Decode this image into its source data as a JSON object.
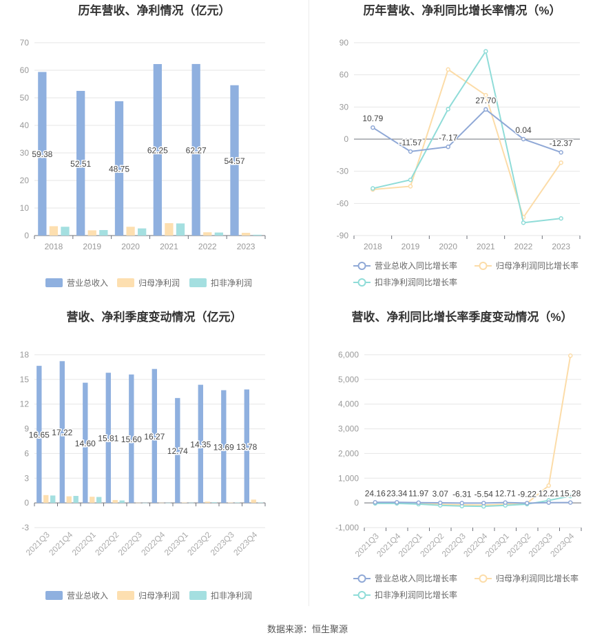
{
  "footer": {
    "source": "数据来源：恒生聚源"
  },
  "colors": {
    "revenue": "#8fb0df",
    "net_profit": "#fddfb0",
    "deducted_profit": "#a4dfe0",
    "rev_line": "#8fa8d6",
    "np_line": "#fcdca8",
    "dp_line": "#8fdcd8"
  },
  "chart_data": [
    {
      "id": "annual-bar",
      "type": "bar",
      "title": "历年营收、净利情况（亿元）",
      "categories": [
        "2018",
        "2019",
        "2020",
        "2021",
        "2022",
        "2023"
      ],
      "series": [
        {
          "name": "营业总收入",
          "values": [
            59.38,
            52.51,
            48.75,
            62.25,
            62.27,
            54.57
          ],
          "labels": [
            "59.38",
            "52.51",
            "48.75",
            "62.25",
            "62.27",
            "54.57"
          ]
        },
        {
          "name": "归母净利润",
          "values": [
            3.4,
            1.9,
            3.2,
            4.5,
            1.2,
            1.0
          ]
        },
        {
          "name": "扣非净利润",
          "values": [
            3.2,
            2.0,
            2.6,
            4.4,
            1.1,
            0.3
          ]
        }
      ],
      "yticks": [
        0,
        10,
        20,
        30,
        40,
        50,
        60,
        70
      ],
      "ylim": [
        0,
        70
      ]
    },
    {
      "id": "annual-line",
      "type": "line",
      "title": "历年营收、净利同比增长率情况（%）",
      "categories": [
        "2018",
        "2019",
        "2020",
        "2021",
        "2022",
        "2023"
      ],
      "series": [
        {
          "name": "营业总收入同比增长率",
          "values": [
            10.79,
            -11.57,
            -7.17,
            27.7,
            0.04,
            -12.37
          ],
          "labels": [
            "10.79",
            "-11.57",
            "-7.17",
            "27.70",
            "0.04",
            "-12.37"
          ]
        },
        {
          "name": "归母净利润同比增长率",
          "values": [
            -47,
            -44,
            65,
            41,
            -73,
            -22
          ]
        },
        {
          "name": "扣非净利润同比增长率",
          "values": [
            -46,
            -38,
            28,
            82,
            -78,
            -74
          ]
        }
      ],
      "yticks": [
        -90,
        -60,
        -30,
        0,
        30,
        60,
        90
      ],
      "ylim": [
        -90,
        90
      ]
    },
    {
      "id": "quarter-bar",
      "type": "bar",
      "title": "营收、净利季度变动情况（亿元）",
      "categories": [
        "2021Q3",
        "2021Q4",
        "2022Q1",
        "2022Q2",
        "2022Q3",
        "2022Q4",
        "2023Q1",
        "2023Q2",
        "2023Q3",
        "2023Q4"
      ],
      "series": [
        {
          "name": "营业总收入",
          "values": [
            16.65,
            17.22,
            14.6,
            15.81,
            15.6,
            16.27,
            12.74,
            14.35,
            13.69,
            13.78
          ],
          "labels": [
            "16.65",
            "17.22",
            "14.60",
            "15.81",
            "15.60",
            "16.27",
            "12.74",
            "14.35",
            "13.69",
            "13.78"
          ]
        },
        {
          "name": "归母净利润",
          "values": [
            0.95,
            0.8,
            0.75,
            0.35,
            0.03,
            0.03,
            0.05,
            0.15,
            0.05,
            0.4
          ]
        },
        {
          "name": "扣非净利润",
          "values": [
            0.9,
            0.85,
            0.72,
            0.3,
            0.02,
            0.02,
            0.03,
            0.08,
            0.05,
            0.05
          ]
        }
      ],
      "yticks": [
        -3,
        0,
        3,
        6,
        9,
        12,
        15,
        18
      ],
      "ylim": [
        -3,
        18
      ]
    },
    {
      "id": "quarter-line",
      "type": "line",
      "title": "营收、净利同比增长率季度变动情况（%）",
      "categories": [
        "2021Q3",
        "2021Q4",
        "2022Q1",
        "2022Q2",
        "2022Q3",
        "2022Q4",
        "2023Q1",
        "2023Q2",
        "2023Q3",
        "2023Q4"
      ],
      "series": [
        {
          "name": "营业总收入同比增长率",
          "values": [
            24.16,
            23.34,
            11.97,
            3.07,
            -6.31,
            -5.54,
            12.71,
            -9.22,
            12.21,
            15.28
          ],
          "labels": [
            "24.16",
            "23.34",
            "11.97",
            "3.07",
            "-6.31",
            "-5.54",
            "12.71",
            "-9.22",
            "12.21",
            "15.28"
          ]
        },
        {
          "name": "归母净利润同比增长率",
          "values": [
            -10,
            -15,
            -30,
            -60,
            -80,
            -90,
            -60,
            -10,
            700,
            5960
          ]
        },
        {
          "name": "扣非净利润同比增长率",
          "values": [
            -20,
            -20,
            -50,
            -100,
            -130,
            -140,
            -100,
            -50,
            100,
            280
          ]
        }
      ],
      "yticks": [
        -1000,
        0,
        1000,
        2000,
        3000,
        4000,
        5000,
        6000
      ],
      "ytick_labels": [
        "-1,000",
        "0",
        "1,000",
        "2,000",
        "3,000",
        "4,000",
        "5,000",
        "6,000"
      ],
      "ylim": [
        -1000,
        6000
      ]
    }
  ]
}
